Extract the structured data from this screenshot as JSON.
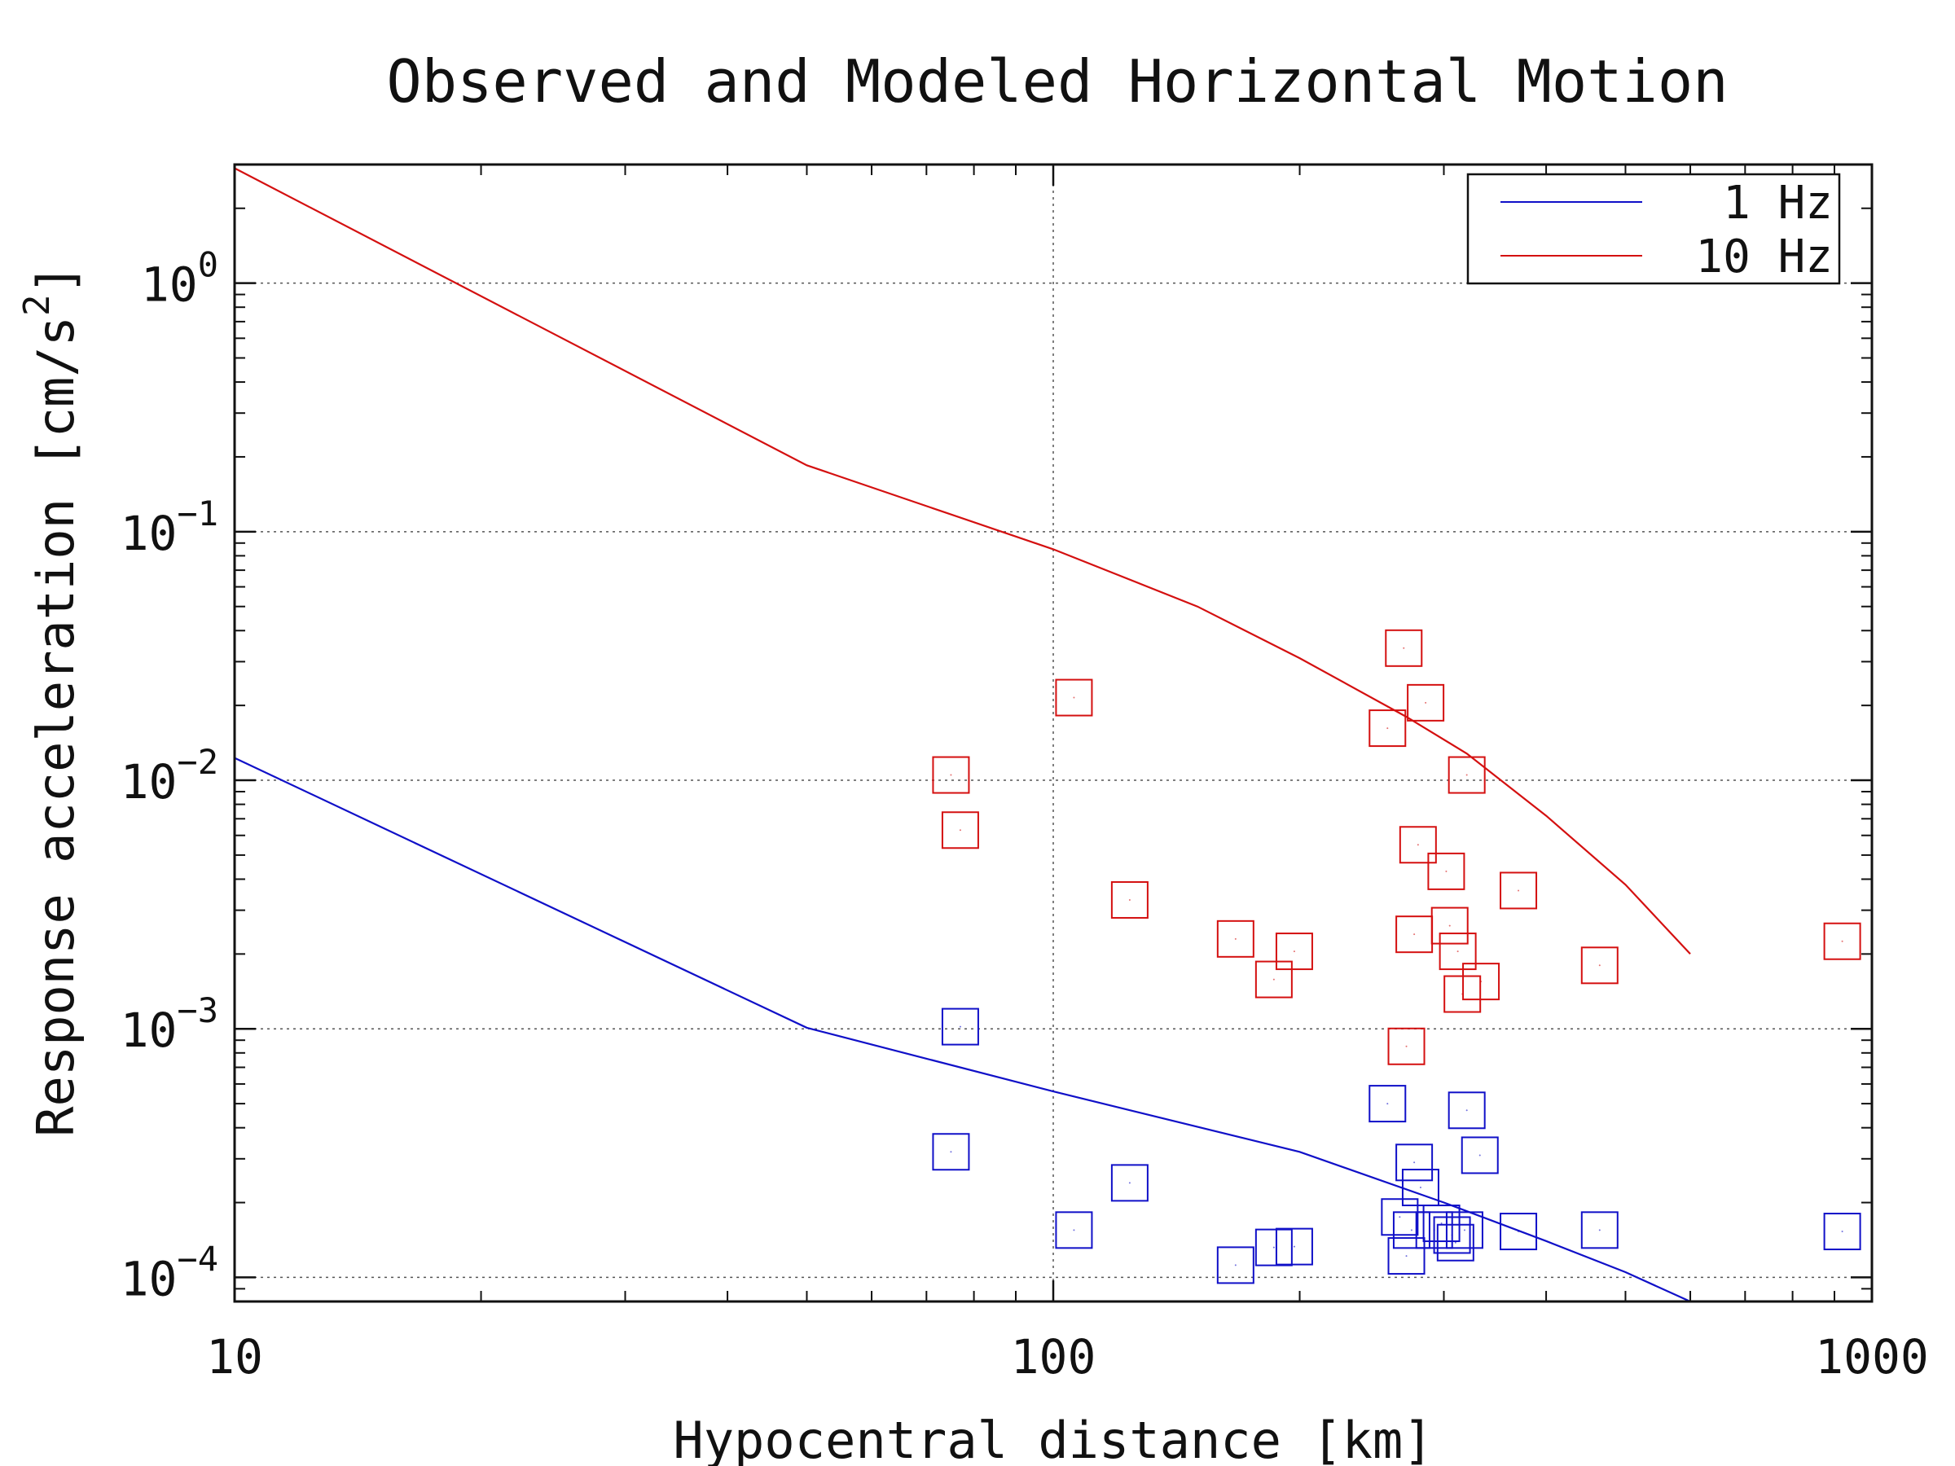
{
  "chart_data": {
    "type": "scatter",
    "title": "Observed and Modeled Horizontal Motion",
    "xlabel": "Hypocentral distance [km]",
    "ylabel": "Response acceleration [cm/s",
    "ylabel_sup": "2",
    "ylabel_close": "]",
    "xscale": "log",
    "yscale": "log",
    "xlim": [
      10,
      1000
    ],
    "ylim": [
      8e-05,
      3.0
    ],
    "grid": true,
    "legend_position": "top-right",
    "x_ticks": [
      {
        "value": 10,
        "label": "10"
      },
      {
        "value": 100,
        "label": "100"
      },
      {
        "value": 1000,
        "label": "1000"
      }
    ],
    "y_ticks": [
      {
        "value": 1,
        "base": "10",
        "exp": "0"
      },
      {
        "value": 0.1,
        "base": "10",
        "exp": "−1"
      },
      {
        "value": 0.01,
        "base": "10",
        "exp": "−2"
      },
      {
        "value": 0.001,
        "base": "10",
        "exp": "−3"
      },
      {
        "value": 0.0001,
        "base": "10",
        "exp": "−4"
      }
    ],
    "series": [
      {
        "name": "1 Hz",
        "color": "#1010c8",
        "model_line": [
          [
            10,
            0.0123
          ],
          [
            50,
            0.00101
          ],
          [
            100,
            0.00056
          ],
          [
            200,
            0.00032
          ],
          [
            300,
            0.0002
          ],
          [
            400,
            0.00014
          ],
          [
            500,
            0.000105
          ],
          [
            600,
            8e-05
          ]
        ],
        "observed": [
          [
            75,
            0.00032
          ],
          [
            77,
            0.00102
          ],
          [
            106,
            0.000155
          ],
          [
            124,
            0.00024
          ],
          [
            167,
            0.000112
          ],
          [
            186,
            0.000132
          ],
          [
            197,
            0.000133
          ],
          [
            256,
            0.0005
          ],
          [
            265,
            0.000175
          ],
          [
            270,
            0.000122
          ],
          [
            274,
            0.000155
          ],
          [
            276,
            0.00029
          ],
          [
            281,
            0.00023
          ],
          [
            292,
            0.000155
          ],
          [
            298,
            0.000165
          ],
          [
            307,
            0.000148
          ],
          [
            310,
            0.000138
          ],
          [
            318,
            0.000155
          ],
          [
            320,
            0.00047
          ],
          [
            332,
            0.00031
          ],
          [
            370,
            0.000153
          ],
          [
            465,
            0.000155
          ],
          [
            920,
            0.000153
          ]
        ]
      },
      {
        "name": "10 Hz",
        "color": "#d41010",
        "model_line": [
          [
            10,
            2.9
          ],
          [
            50,
            0.185
          ],
          [
            100,
            0.085
          ],
          [
            150,
            0.05
          ],
          [
            200,
            0.031
          ],
          [
            270,
            0.018
          ],
          [
            320,
            0.0128
          ],
          [
            400,
            0.0072
          ],
          [
            500,
            0.0038
          ],
          [
            600,
            0.002
          ]
        ],
        "observed": [
          [
            75,
            0.0105
          ],
          [
            77,
            0.0063
          ],
          [
            106,
            0.0215
          ],
          [
            124,
            0.0033
          ],
          [
            167,
            0.0023
          ],
          [
            186,
            0.00158
          ],
          [
            197,
            0.00205
          ],
          [
            256,
            0.0162
          ],
          [
            268,
            0.034
          ],
          [
            270,
            0.00085
          ],
          [
            276,
            0.0024
          ],
          [
            279,
            0.0055
          ],
          [
            285,
            0.0205
          ],
          [
            302,
            0.0043
          ],
          [
            305,
            0.0026
          ],
          [
            312,
            0.00205
          ],
          [
            316,
            0.00138
          ],
          [
            320,
            0.0105
          ],
          [
            333,
            0.00155
          ],
          [
            370,
            0.0036
          ],
          [
            465,
            0.0018
          ],
          [
            920,
            0.00225
          ]
        ]
      }
    ]
  }
}
